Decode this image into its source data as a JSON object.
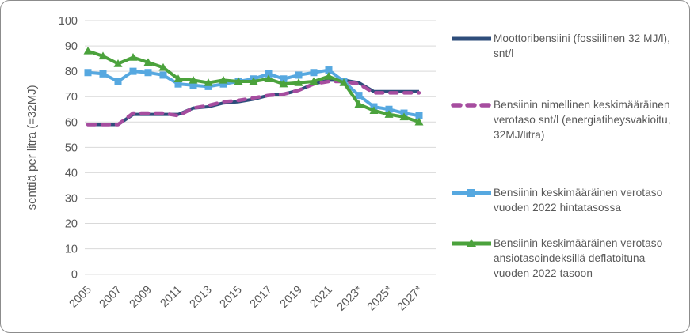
{
  "page": {
    "background": "#ffffff",
    "border_color": "#8c8c8c",
    "text_color": "#595959",
    "gridline_color": "#d9d9d9",
    "baseline_color": "#bfbfbf"
  },
  "chart_data": {
    "type": "line",
    "title": "",
    "xlabel": "",
    "ylabel": "senttiä per litra (=32MJ)",
    "ylim": [
      0,
      100
    ],
    "ytick_step": 10,
    "grid": "horizontal",
    "legend_position": "right",
    "x": [
      2005,
      2006,
      2007,
      2008,
      2009,
      2010,
      2011,
      2012,
      2013,
      2014,
      2015,
      2016,
      2017,
      2018,
      2019,
      2020,
      2021,
      2022,
      2023,
      2024,
      2025,
      2026,
      2027
    ],
    "xtick_labels": [
      "2005",
      "2007",
      "2009",
      "2011",
      "2013",
      "2015",
      "2017",
      "2019",
      "2021",
      "2023*",
      "2025*",
      "2027*"
    ],
    "series": [
      {
        "name": "Moottoribensiini (fossiilinen 32 MJ/l), snt/l",
        "color": "#2e4d7b",
        "style": "solid",
        "marker": "none",
        "values": [
          59,
          59,
          59,
          63,
          63,
          63,
          63,
          65.5,
          66,
          67.5,
          68,
          69,
          70.5,
          71,
          72.5,
          75,
          76.5,
          76.5,
          75.5,
          72,
          72,
          72,
          72
        ]
      },
      {
        "name": "Bensiinin nimellinen keskimääräinen verotaso snt/l (energiatiheysvakioitu, 32MJ/litra)",
        "color": "#a64d9f",
        "style": "dashed",
        "marker": "none",
        "values": [
          59,
          59,
          59,
          63.5,
          63.5,
          63.5,
          62.5,
          65.5,
          66.5,
          68,
          68.5,
          69.5,
          70.5,
          71,
          72.5,
          75,
          76,
          76,
          75,
          71.5,
          71.5,
          71.5,
          71.5
        ]
      },
      {
        "name": "Bensiinin keskimääräinen verotaso vuoden 2022 hintatasossa",
        "color": "#56a8e0",
        "style": "solid",
        "marker": "square",
        "values": [
          79.5,
          79,
          76,
          80,
          79.5,
          78.5,
          75,
          74.5,
          74,
          75,
          76,
          77,
          79,
          77,
          78.5,
          79.5,
          80.5,
          76,
          70.5,
          66,
          65,
          63.5,
          62.5
        ]
      },
      {
        "name": "Bensiinin keskimääräinen verotaso ansiotasoindeksillä deflatoituna vuoden 2022 tasoon",
        "color": "#4ba23c",
        "style": "solid",
        "marker": "triangle",
        "values": [
          88,
          86,
          83,
          85.5,
          83.5,
          81.5,
          77,
          76.5,
          75.5,
          76.5,
          76,
          76,
          77,
          75,
          75.5,
          76,
          78,
          75.5,
          67,
          64.5,
          63,
          62,
          60
        ]
      }
    ]
  }
}
